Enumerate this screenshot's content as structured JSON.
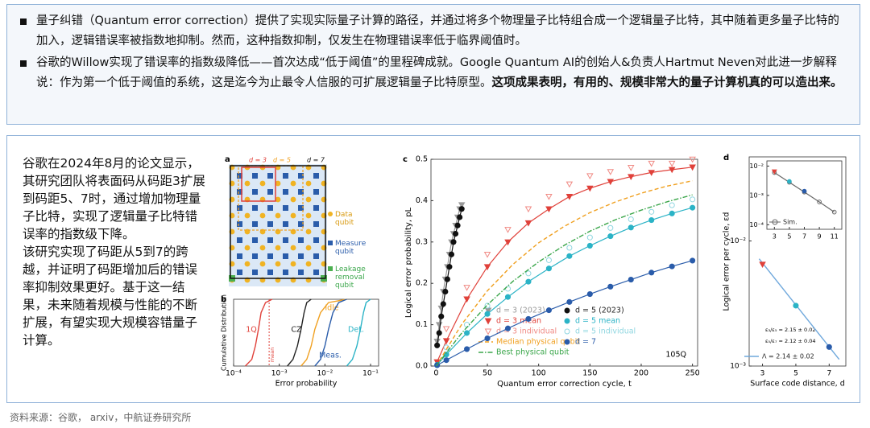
{
  "bullets": [
    {
      "text": "量子纠错（Quantum error correction）提供了实现实际量子计算的路径，并通过将多个物理量子比特组合成一个逻辑量子比特，其中随着更多量子比特的加入，逻辑错误率被指数地抑制。然而，这种指数抑制，仅发生在物理错误率低于临界阈值时。"
    },
    {
      "text": "谷歌的Willow实现了错误率的指数级降低——首次达成“低于阈值”的里程碑成就。Google Quantum AI的创始人&负责人Hartmut Neven对此进一步解释说：作为第一个低于阈值的系统，这是迄今为止最令人信服的可扩展逻辑量子比特原型。",
      "bold": "这项成果表明，有用的、规模非常大的量子计算机真的可以造出来。"
    }
  ],
  "side_text": [
    "谷歌在2024年8月的论文显示，其研究团队将表面码从码距3扩展到码距5、7时，通过增加物理量子比特，实现了逻辑量子比特错误率的指数级下降。",
    "该研究实现了码距从5到7的跨越，并证明了码距增加后的错误率抑制效果更好。基于这一结果，未来随着规模与性能的不断扩展，有望实现大规模容错量子计算。"
  ],
  "source": "资料来源：谷歌， arxiv，中航证券研究所",
  "figure_a": {
    "label": "a",
    "distances": [
      "d = 3",
      "d = 5",
      "d = 7"
    ],
    "legend": [
      "Data qubit",
      "Measure qubit",
      "Leakage removal qubit"
    ]
  },
  "chart_data": [
    {
      "type": "line",
      "label": "b",
      "xlabel": "Error probability",
      "ylabel": "Cumulative Distribution",
      "xlog": true,
      "xlim": [
        0.0001,
        0.15
      ],
      "ylim": [
        0,
        1
      ],
      "xticks": [
        {
          "value": 0.0001,
          "label": "10⁻⁴"
        },
        {
          "value": 0.001,
          "label": "10⁻³"
        },
        {
          "value": 0.01,
          "label": "10⁻²"
        },
        {
          "value": 0.1,
          "label": "10⁻¹"
        }
      ],
      "series": [
        {
          "name": "1Q",
          "color": "#e0413a",
          "line": "solid",
          "x": [
            0.00018,
            0.00025,
            0.0003,
            0.00035,
            0.0004,
            0.0005,
            0.0007
          ],
          "values": [
            0,
            0.1,
            0.3,
            0.55,
            0.8,
            0.95,
            1
          ],
          "mean": 0.0006,
          "mean_label": "mean"
        },
        {
          "name": "CZ",
          "color": "#222222",
          "line": "solid",
          "x": [
            0.0015,
            0.002,
            0.0025,
            0.003,
            0.0035,
            0.004,
            0.005
          ],
          "values": [
            0,
            0.1,
            0.3,
            0.55,
            0.8,
            0.95,
            1
          ]
        },
        {
          "name": "Idle",
          "color": "#f0a020",
          "line": "solid",
          "x": [
            0.003,
            0.004,
            0.005,
            0.006,
            0.008,
            0.012,
            0.03
          ],
          "values": [
            0,
            0.1,
            0.3,
            0.55,
            0.8,
            0.95,
            1
          ]
        },
        {
          "name": "Meas.",
          "color": "#2a5caa",
          "line": "solid",
          "x": [
            0.006,
            0.008,
            0.01,
            0.012,
            0.015,
            0.02,
            0.03
          ],
          "values": [
            0,
            0.1,
            0.3,
            0.55,
            0.8,
            0.95,
            1
          ]
        },
        {
          "name": "Det.",
          "color": "#2bb3c6",
          "line": "solid",
          "x": [
            0.03,
            0.04,
            0.05,
            0.06,
            0.07,
            0.08,
            0.1
          ],
          "values": [
            0,
            0.1,
            0.3,
            0.55,
            0.8,
            0.95,
            1
          ]
        }
      ]
    },
    {
      "type": "scatter",
      "label": "c",
      "xlabel": "Quantum error correction cycle, t",
      "ylabel": "Logical error probability, pL",
      "annotation": "105Q",
      "xlim": [
        -5,
        255
      ],
      "ylim": [
        0,
        0.5
      ],
      "xticks": [
        0,
        50,
        100,
        150,
        200,
        250
      ],
      "yticks": [
        {
          "value": 0,
          "label": "0.0"
        },
        0.1,
        0.2,
        0.3,
        0.4,
        0.5
      ],
      "series": [
        {
          "name": "d = 3 (2023)",
          "color": "#999999",
          "marker": "tri",
          "line": "solid",
          "x": [
            1,
            3,
            5,
            7,
            9,
            11,
            13,
            15,
            17,
            19,
            21,
            23,
            25
          ],
          "values": [
            0.06,
            0.1,
            0.14,
            0.18,
            0.21,
            0.24,
            0.27,
            0.3,
            0.32,
            0.34,
            0.36,
            0.38,
            0.39
          ]
        },
        {
          "name": "d = 5 (2023)",
          "color": "#111111",
          "marker": "dot",
          "line": "solid",
          "x": [
            1,
            3,
            5,
            7,
            9,
            11,
            13,
            15,
            17,
            19,
            21,
            23,
            25
          ],
          "values": [
            0.05,
            0.08,
            0.12,
            0.15,
            0.18,
            0.21,
            0.24,
            0.27,
            0.3,
            0.32,
            0.34,
            0.36,
            0.38
          ]
        },
        {
          "name": "d = 3 mean",
          "color": "#e0413a",
          "marker": "tri",
          "line": "solid",
          "x": [
            1,
            10,
            30,
            50,
            70,
            90,
            110,
            130,
            150,
            170,
            190,
            210,
            230,
            250
          ],
          "values": [
            0.01,
            0.061,
            0.162,
            0.24,
            0.3,
            0.346,
            0.38,
            0.41,
            0.43,
            0.446,
            0.458,
            0.468,
            0.475,
            0.481
          ]
        },
        {
          "name": "d = 5 mean",
          "color": "#2bb3c6",
          "marker": "dot",
          "line": "solid",
          "x": [
            1,
            10,
            30,
            50,
            70,
            90,
            110,
            130,
            150,
            170,
            190,
            210,
            230,
            250
          ],
          "values": [
            0.003,
            0.028,
            0.08,
            0.126,
            0.167,
            0.204,
            0.236,
            0.266,
            0.291,
            0.314,
            0.335,
            0.353,
            0.369,
            0.383
          ]
        },
        {
          "name": "d = 3 individual",
          "color": "#f08a84",
          "marker": "otri",
          "x": [
            10,
            30,
            50,
            70,
            90,
            110,
            130,
            150,
            170,
            190,
            210,
            230,
            250
          ],
          "values": [
            0.09,
            0.19,
            0.27,
            0.33,
            0.38,
            0.41,
            0.44,
            0.46,
            0.47,
            0.48,
            0.49,
            0.49,
            0.5
          ]
        },
        {
          "name": "d = 5 individual",
          "color": "#8fd6e0",
          "marker": "ocircle",
          "x": [
            10,
            30,
            50,
            70,
            90,
            110,
            130,
            150,
            170,
            190,
            210,
            230,
            250
          ],
          "values": [
            0.045,
            0.1,
            0.146,
            0.187,
            0.224,
            0.256,
            0.286,
            0.311,
            0.334,
            0.355,
            0.373,
            0.389,
            0.403
          ]
        },
        {
          "name": "Median physical qubit",
          "color": "#f0a020",
          "line": "dashed",
          "x": [
            0,
            25,
            50,
            75,
            100,
            125,
            150,
            175,
            200,
            225,
            250
          ],
          "values": [
            0,
            0.101,
            0.182,
            0.246,
            0.298,
            0.338,
            0.371,
            0.397,
            0.418,
            0.435,
            0.448
          ]
        },
        {
          "name": "d = 7",
          "color": "#2a5caa",
          "marker": "dot",
          "line": "solid",
          "x": [
            1,
            10,
            30,
            50,
            70,
            90,
            110,
            130,
            150,
            170,
            190,
            210,
            230,
            250
          ],
          "values": [
            0.002,
            0.0143,
            0.041,
            0.067,
            0.091,
            0.114,
            0.135,
            0.155,
            0.174,
            0.192,
            0.209,
            0.226,
            0.241,
            0.255
          ]
        },
        {
          "name": "Best physical qubit",
          "color": "#3aa64a",
          "line": "dashdot",
          "x": [
            0,
            25,
            50,
            75,
            100,
            125,
            150,
            175,
            200,
            225,
            250
          ],
          "values": [
            0,
            0.08,
            0.148,
            0.205,
            0.252,
            0.292,
            0.326,
            0.354,
            0.377,
            0.397,
            0.414
          ]
        }
      ]
    },
    {
      "type": "scatter",
      "label": "d",
      "xlabel": "Surface code distance, d",
      "ylabel": "Logical error per cycle, εd",
      "ylog": true,
      "xlim": [
        2.2,
        8
      ],
      "ylim": [
        0.001,
        0.047
      ],
      "xticks": [
        3,
        5,
        7
      ],
      "yticks": [
        {
          "value": 0.01,
          "label": "10⁻²"
        },
        {
          "value": 0.001,
          "label": "10⁻³"
        }
      ],
      "annotations": [
        "ε₃/ε₅ = 2.15 ± 0.02",
        "ε₅/ε₇ = 2.12 ± 0.04"
      ],
      "series": [
        {
          "name": "Λ = 2.14 ± 0.02",
          "color": "#6fa8dc",
          "line": "solid",
          "x": [
            2.8,
            7.6
          ],
          "values": [
            0.0072,
            0.00113
          ]
        },
        {
          "color": "#e0413a",
          "marker": "tri",
          "x": [
            3
          ],
          "values": [
            0.0065
          ]
        },
        {
          "color": "#2bb3c6",
          "marker": "dot",
          "x": [
            5
          ],
          "values": [
            0.00304
          ]
        },
        {
          "color": "#2a5caa",
          "marker": "dot",
          "x": [
            7
          ],
          "values": [
            0.00142
          ]
        }
      ]
    },
    {
      "type": "scatter",
      "ylog": true,
      "xlim": [
        2,
        12
      ],
      "ylim": [
        7e-05,
        0.015
      ],
      "xticks": [
        3,
        5,
        7,
        9,
        11
      ],
      "yticks": [
        {
          "value": 0.01,
          "label": "10⁻²"
        },
        {
          "value": 0.001,
          "label": "10⁻³"
        },
        {
          "value": 0.0001,
          "label": "10⁻⁴"
        }
      ],
      "series": [
        {
          "name": "Sim.",
          "color": "#666666",
          "marker": "ocircle",
          "line": "solid",
          "x": [
            3,
            5,
            7,
            9,
            11
          ],
          "values": [
            0.006,
            0.0028,
            0.0013,
            0.0006,
            0.00027
          ]
        },
        {
          "color": "#e0413a",
          "marker": "tri",
          "x": [
            3
          ],
          "values": [
            0.0065
          ]
        },
        {
          "color": "#2bb3c6",
          "marker": "dot",
          "x": [
            5
          ],
          "values": [
            0.003
          ]
        },
        {
          "color": "#2a5caa",
          "marker": "dot",
          "x": [
            7
          ],
          "values": [
            0.0014
          ]
        }
      ]
    }
  ]
}
